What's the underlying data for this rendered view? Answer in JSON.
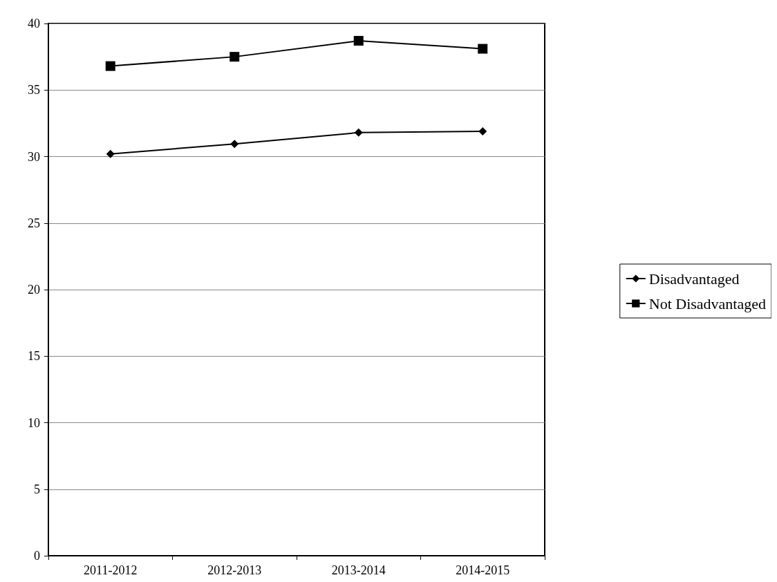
{
  "chart_data": {
    "type": "line",
    "categories": [
      "2011-2012",
      "2012-2013",
      "2013-2014",
      "2014-2015"
    ],
    "series": [
      {
        "name": "Disadvantaged",
        "color": "#000000",
        "marker": "diamond",
        "values": [
          30.2,
          30.95,
          31.8,
          31.9
        ]
      },
      {
        "name": "Not Disadvantaged",
        "color": "#000000",
        "marker": "square",
        "values": [
          36.8,
          37.5,
          38.7,
          38.1
        ]
      }
    ],
    "ylim": [
      0,
      40
    ],
    "yticks": [
      0,
      5,
      10,
      15,
      20,
      25,
      30,
      35,
      40
    ],
    "grid": "y",
    "legend": "right",
    "line_style": "solid"
  }
}
